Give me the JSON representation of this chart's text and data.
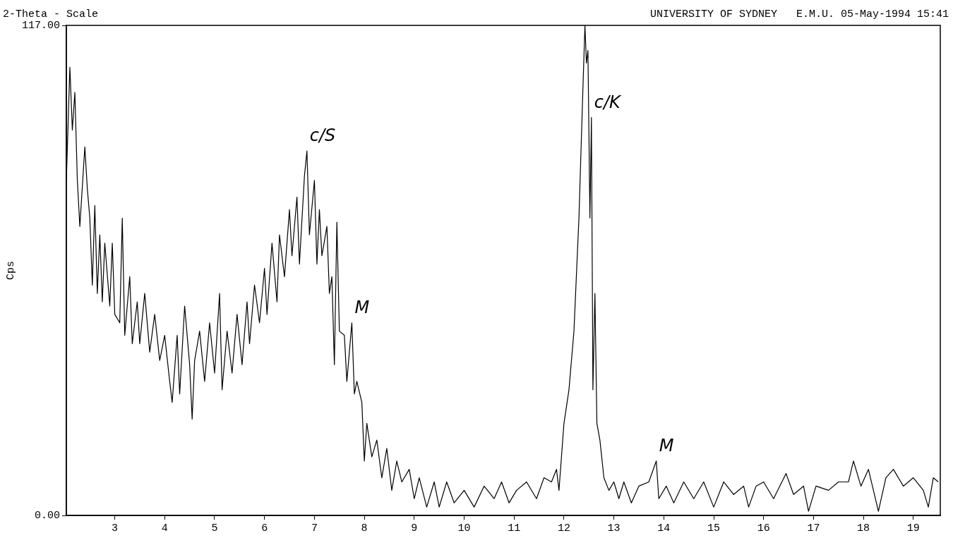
{
  "chart_data": {
    "type": "line",
    "title": "2-Theta - Scale",
    "subtitle": "UNIVERSITY OF SYDNEY   E.M.U. 05-May-1994 15:41",
    "ylabel": "Cps",
    "xlim": [
      2.03,
      19.54
    ],
    "xticks": [
      3,
      4,
      5,
      6,
      7,
      8,
      9,
      10,
      11,
      12,
      13,
      14,
      15,
      16,
      17,
      18,
      19
    ],
    "ylim": [
      0,
      117
    ],
    "yticks": [
      {
        "value": 0,
        "label": "0.00"
      },
      {
        "value": 117,
        "label": "117.00"
      }
    ],
    "legend": false,
    "marker": "none",
    "line_style": "solid",
    "annotations": [
      {
        "text": "c/S",
        "x": 6.85,
        "y": 87
      },
      {
        "text": "c/K",
        "x": 12.55,
        "y": 95
      },
      {
        "text": "M",
        "x": 7.75,
        "y": 46
      },
      {
        "text": "M",
        "x": 13.85,
        "y": 13
      }
    ],
    "series": [
      {
        "color": "#000000",
        "x": [
          2.03,
          2.1,
          2.15,
          2.2,
          2.25,
          2.3,
          2.4,
          2.45,
          2.5,
          2.55,
          2.6,
          2.65,
          2.7,
          2.75,
          2.8,
          2.9,
          2.95,
          3.0,
          3.1,
          3.15,
          3.2,
          3.3,
          3.35,
          3.45,
          3.5,
          3.6,
          3.7,
          3.8,
          3.9,
          4.0,
          4.1,
          4.15,
          4.25,
          4.3,
          4.4,
          4.5,
          4.55,
          4.6,
          4.7,
          4.8,
          4.9,
          5.0,
          5.1,
          5.15,
          5.25,
          5.35,
          5.45,
          5.55,
          5.65,
          5.7,
          5.8,
          5.9,
          6.0,
          6.05,
          6.15,
          6.25,
          6.3,
          6.4,
          6.5,
          6.55,
          6.65,
          6.7,
          6.8,
          6.85,
          6.9,
          7.0,
          7.05,
          7.1,
          7.15,
          7.25,
          7.3,
          7.35,
          7.4,
          7.45,
          7.5,
          7.6,
          7.65,
          7.75,
          7.8,
          7.85,
          7.95,
          8.0,
          8.05,
          8.15,
          8.25,
          8.35,
          8.45,
          8.55,
          8.65,
          8.75,
          8.9,
          9.0,
          9.1,
          9.25,
          9.4,
          9.5,
          9.65,
          9.8,
          10.0,
          10.2,
          10.4,
          10.6,
          10.75,
          10.9,
          11.05,
          11.25,
          11.45,
          11.6,
          11.75,
          11.85,
          11.9,
          12.0,
          12.1,
          12.2,
          12.3,
          12.38,
          12.42,
          12.45,
          12.48,
          12.52,
          12.55,
          12.58,
          12.62,
          12.66,
          12.72,
          12.8,
          12.9,
          13.0,
          13.1,
          13.2,
          13.35,
          13.5,
          13.7,
          13.85,
          13.9,
          14.05,
          14.2,
          14.4,
          14.6,
          14.8,
          15.0,
          15.2,
          15.4,
          15.6,
          15.7,
          15.85,
          16.0,
          16.2,
          16.45,
          16.6,
          16.8,
          16.9,
          17.05,
          17.3,
          17.5,
          17.7,
          17.8,
          17.95,
          18.1,
          18.3,
          18.45,
          18.6,
          18.8,
          19.0,
          19.2,
          19.3,
          19.4,
          19.5
        ],
        "values": [
          80,
          107,
          92,
          101,
          80,
          69,
          88,
          78,
          71,
          55,
          74,
          53,
          67,
          51,
          65,
          50,
          65,
          48,
          46,
          71,
          43,
          57,
          41,
          51,
          41,
          53,
          39,
          48,
          37,
          43,
          32,
          27,
          43,
          29,
          50,
          36,
          23,
          37,
          44,
          32,
          46,
          34,
          53,
          30,
          44,
          34,
          48,
          36,
          51,
          41,
          55,
          46,
          59,
          48,
          65,
          51,
          67,
          57,
          73,
          62,
          76,
          60,
          81,
          87,
          67,
          80,
          60,
          73,
          62,
          69,
          53,
          57,
          36,
          70,
          44,
          43,
          32,
          46,
          29,
          32,
          27,
          13,
          22,
          14,
          18,
          9,
          16,
          6,
          13,
          8,
          11,
          4,
          9,
          2,
          8,
          2,
          8,
          3,
          6,
          2,
          7,
          4,
          8,
          3,
          6,
          8,
          4,
          9,
          8,
          11,
          6,
          22,
          30,
          44,
          71,
          102,
          117,
          108,
          111,
          71,
          95,
          30,
          53,
          22,
          18,
          9,
          6,
          8,
          4,
          8,
          3,
          7,
          8,
          13,
          4,
          7,
          3,
          8,
          4,
          8,
          2,
          8,
          5,
          7,
          2,
          7,
          8,
          4,
          10,
          5,
          7,
          1,
          7,
          6,
          8,
          8,
          13,
          7,
          11,
          1,
          9,
          11,
          7,
          9,
          6,
          2,
          9,
          8
        ]
      }
    ]
  }
}
